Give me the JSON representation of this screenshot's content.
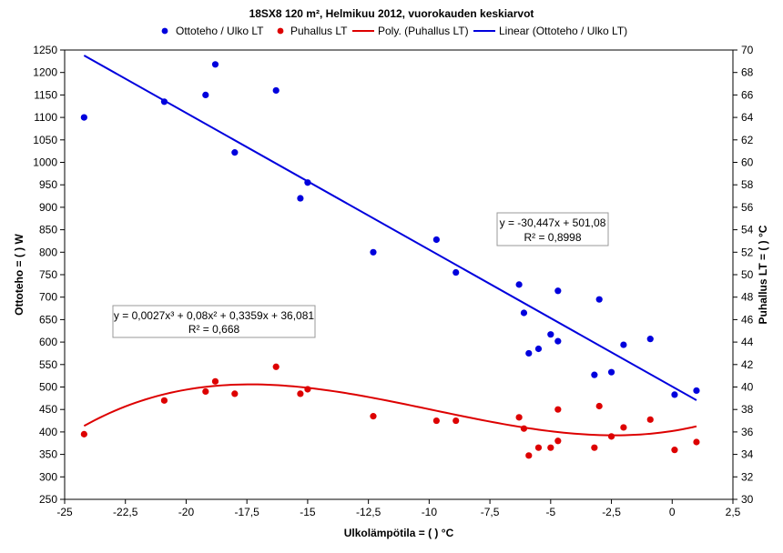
{
  "chart_data": {
    "type": "scatter",
    "title": "18SX8 120 m², Helmikuu 2012, vuorokauden keskiarvot",
    "xlabel": "Ulkolämpötila = ( ) °C",
    "ylabel": "Ottoteho = ( ) W",
    "y2label": "Puhallus LT = ( ) °C",
    "xlim": [
      -25,
      2.5
    ],
    "ylim": [
      250,
      1250
    ],
    "y2lim": [
      30,
      70
    ],
    "x_ticks": [
      "-25",
      "-22,5",
      "-20",
      "-17,5",
      "-15",
      "-12,5",
      "-10",
      "-7,5",
      "-5",
      "-2,5",
      "0",
      "2,5"
    ],
    "y_ticks": [
      "250",
      "300",
      "350",
      "400",
      "450",
      "500",
      "550",
      "600",
      "650",
      "700",
      "750",
      "800",
      "850",
      "900",
      "950",
      "1000",
      "1050",
      "1100",
      "1150",
      "1200",
      "1250"
    ],
    "y2_ticks": [
      "30",
      "32",
      "34",
      "36",
      "38",
      "40",
      "42",
      "44",
      "46",
      "48",
      "50",
      "52",
      "54",
      "56",
      "58",
      "60",
      "62",
      "64",
      "66",
      "68",
      "70"
    ],
    "series": [
      {
        "name": "Ottoteho / Ulko LT",
        "axis": "left",
        "color": "#0000dd",
        "points": [
          [
            -24.2,
            1100
          ],
          [
            -20.9,
            1135
          ],
          [
            -19.2,
            1150
          ],
          [
            -18.8,
            1218
          ],
          [
            -18,
            1022
          ],
          [
            -16.3,
            1160
          ],
          [
            -15.3,
            920
          ],
          [
            -15,
            955
          ],
          [
            -12.3,
            800
          ],
          [
            -9.7,
            828
          ],
          [
            -8.9,
            755
          ],
          [
            -6.3,
            728
          ],
          [
            -6.1,
            665
          ],
          [
            -5.9,
            575
          ],
          [
            -5.5,
            585
          ],
          [
            -5,
            617
          ],
          [
            -4.7,
            714
          ],
          [
            -4.7,
            602
          ],
          [
            -3.2,
            527
          ],
          [
            -3,
            695
          ],
          [
            -2.5,
            533
          ],
          [
            -2,
            594
          ],
          [
            -0.9,
            607
          ],
          [
            0.1,
            483
          ],
          [
            1,
            492
          ]
        ]
      },
      {
        "name": "Puhallus LT",
        "axis": "right",
        "color": "#dd0000",
        "points": [
          [
            -24.2,
            35.8
          ],
          [
            -20.9,
            38.8
          ],
          [
            -19.2,
            39.6
          ],
          [
            -18.8,
            40.5
          ],
          [
            -18,
            39.4
          ],
          [
            -16.3,
            41.8
          ],
          [
            -15.3,
            39.4
          ],
          [
            -15,
            39.8
          ],
          [
            -12.3,
            37.4
          ],
          [
            -9.7,
            37.0
          ],
          [
            -8.9,
            37.0
          ],
          [
            -6.3,
            37.3
          ],
          [
            -6.1,
            36.3
          ],
          [
            -5.9,
            33.9
          ],
          [
            -5.5,
            34.6
          ],
          [
            -5,
            34.6
          ],
          [
            -4.7,
            35.2
          ],
          [
            -4.7,
            38.0
          ],
          [
            -3.2,
            34.6
          ],
          [
            -3,
            38.3
          ],
          [
            -2.5,
            35.6
          ],
          [
            -2,
            36.4
          ],
          [
            -0.9,
            37.1
          ],
          [
            0.1,
            34.4
          ],
          [
            1,
            35.1
          ]
        ]
      },
      {
        "name": "Poly. (Puhallus LT)",
        "axis": "right",
        "color": "#dd0000",
        "kind": "trend-poly3",
        "coeffs": [
          0.0027,
          0.08,
          0.3359,
          36.081
        ],
        "range": [
          -24.2,
          1
        ]
      },
      {
        "name": "Linear (Ottoteho / Ulko LT)",
        "axis": "left",
        "color": "#0000dd",
        "kind": "trend-linear",
        "slope": -30.447,
        "intercept": 501.08,
        "range": [
          -24.2,
          1
        ]
      }
    ],
    "annotations": {
      "linear_eq": "y = -30,447x + 501,08",
      "linear_r2": "R² = 0,8998",
      "poly_eq": "y = 0,0027x³ + 0,08x² + 0,3359x + 36,081",
      "poly_r2": "R² = 0,668"
    },
    "legend": "top",
    "grid": false
  }
}
